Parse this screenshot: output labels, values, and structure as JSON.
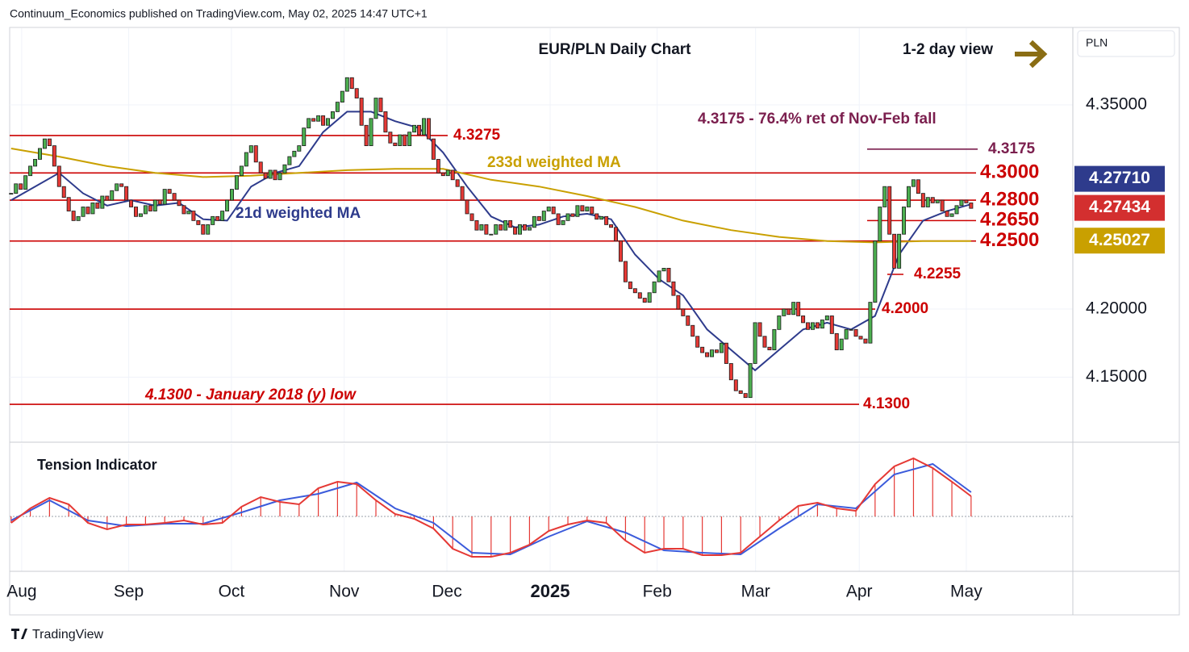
{
  "header": "Continuum_Economics published on TradingView.com, May 02, 2025 14:47 UTC+1",
  "footer": "TradingView",
  "chart_data": {
    "type": "candlestick",
    "title": "EUR/PLN Daily Chart",
    "view": "1-2 day view",
    "currency": "PLN",
    "xlim": [
      -0.3,
      221.2
    ],
    "xticks": [
      {
        "value": 2.2,
        "label": "Aug"
      },
      {
        "value": 24.5,
        "label": "Sep"
      },
      {
        "value": 45.9,
        "label": "Oct"
      },
      {
        "value": 69.4,
        "label": "Nov"
      },
      {
        "value": 90.8,
        "label": "Dec"
      },
      {
        "value": 112.3,
        "label": "2025"
      },
      {
        "value": 134.6,
        "label": "Feb"
      },
      {
        "value": 155.1,
        "label": "Mar"
      },
      {
        "value": 176.7,
        "label": "Apr"
      },
      {
        "value": 199,
        "label": "May"
      }
    ],
    "ylim": [
      4.1022,
      4.4063
    ],
    "yticks": [
      {
        "value": 4.35,
        "label": "4.35000"
      },
      {
        "value": 4.2,
        "label": "4.20000"
      },
      {
        "value": 4.15,
        "label": "4.15000"
      }
    ],
    "grid": true,
    "up_color": "#4caf50",
    "down_color": "#e53935",
    "values": [
      4.285,
      4.292,
      4.288,
      4.298,
      4.305,
      4.31,
      4.318,
      4.325,
      4.32,
      4.305,
      4.29,
      4.282,
      4.272,
      4.265,
      4.268,
      4.275,
      4.27,
      4.278,
      4.274,
      4.283,
      4.28,
      4.287,
      4.292,
      4.29,
      4.28,
      4.275,
      4.268,
      4.27,
      4.276,
      4.272,
      4.28,
      4.277,
      4.288,
      4.285,
      4.28,
      4.276,
      4.27,
      4.272,
      4.265,
      4.262,
      4.255,
      4.262,
      4.268,
      4.265,
      4.272,
      4.28,
      4.288,
      4.298,
      4.305,
      4.315,
      4.32,
      4.308,
      4.3,
      4.296,
      4.302,
      4.295,
      4.3,
      4.306,
      4.312,
      4.316,
      4.32,
      4.333,
      4.34,
      4.338,
      4.342,
      4.335,
      4.34,
      4.345,
      4.352,
      4.36,
      4.37,
      4.362,
      4.355,
      4.335,
      4.32,
      4.34,
      4.355,
      4.345,
      4.33,
      4.322,
      4.32,
      4.328,
      4.32,
      4.33,
      4.335,
      4.328,
      4.34,
      4.325,
      4.31,
      4.3,
      4.298,
      4.302,
      4.295,
      4.29,
      4.28,
      4.27,
      4.265,
      4.258,
      4.262,
      4.255,
      4.255,
      4.262,
      4.258,
      4.265,
      4.26,
      4.255,
      4.262,
      4.258,
      4.26,
      4.268,
      4.265,
      4.272,
      4.275,
      4.27,
      4.262,
      4.265,
      4.27,
      4.268,
      4.276,
      4.272,
      4.275,
      4.27,
      4.266,
      4.268,
      4.262,
      4.26,
      4.25,
      4.235,
      4.22,
      4.215,
      4.212,
      4.208,
      4.205,
      4.212,
      4.22,
      4.228,
      4.23,
      4.22,
      4.21,
      4.2,
      4.195,
      4.188,
      4.18,
      4.172,
      4.168,
      4.165,
      4.17,
      4.168,
      4.175,
      4.16,
      4.148,
      4.14,
      4.138,
      4.135,
      4.16,
      4.19,
      4.18,
      4.172,
      4.17,
      4.185,
      4.195,
      4.2,
      4.196,
      4.205,
      4.195,
      4.19,
      4.185,
      4.19,
      4.186,
      4.192,
      4.195,
      4.182,
      4.17,
      4.178,
      4.185,
      4.185,
      4.18,
      4.178,
      4.175,
      4.205,
      4.25,
      4.275,
      4.29,
      4.255,
      4.23,
      4.255,
      4.275,
      4.29,
      4.295,
      4.285,
      4.275,
      4.282,
      4.278,
      4.28,
      4.272,
      4.268,
      4.27,
      4.276,
      4.28,
      4.278,
      4.274
    ],
    "moving_averages": [
      {
        "name": "21d weighted MA",
        "color": "#2e3b8c",
        "x": [
          0,
          5,
          10,
          15,
          20,
          25,
          30,
          35,
          40,
          45,
          50,
          55,
          60,
          65,
          70,
          75,
          80,
          85,
          90,
          95,
          100,
          105,
          110,
          115,
          120,
          125,
          130,
          135,
          140,
          145,
          150,
          155,
          160,
          165,
          170,
          175,
          180,
          185,
          190,
          195,
          200
        ],
        "values": [
          4.28,
          4.29,
          4.3,
          4.285,
          4.276,
          4.28,
          4.276,
          4.278,
          4.266,
          4.265,
          4.29,
          4.3,
          4.305,
          4.33,
          4.345,
          4.345,
          4.338,
          4.333,
          4.315,
          4.29,
          4.268,
          4.26,
          4.262,
          4.268,
          4.27,
          4.266,
          4.24,
          4.222,
          4.21,
          4.185,
          4.17,
          4.155,
          4.17,
          4.185,
          4.19,
          4.185,
          4.195,
          4.24,
          4.265,
          4.272,
          4.277
        ]
      },
      {
        "name": "233d weighted MA",
        "color": "#c9a000",
        "x": [
          0,
          10,
          20,
          30,
          40,
          50,
          60,
          70,
          80,
          90,
          100,
          110,
          120,
          130,
          140,
          150,
          160,
          170,
          180,
          190,
          200
        ],
        "values": [
          4.318,
          4.312,
          4.305,
          4.3,
          4.297,
          4.298,
          4.3,
          4.302,
          4.303,
          4.303,
          4.295,
          4.29,
          4.283,
          4.275,
          4.265,
          4.258,
          4.253,
          4.25,
          4.249,
          4.25,
          4.25
        ]
      }
    ],
    "levels": [
      {
        "value": 4.3275,
        "label": "4.3275",
        "color": "#cc0000"
      },
      {
        "value": 4.3175,
        "label": "4.3175",
        "color": "#7b1f4e"
      },
      {
        "value": 4.3,
        "label": "4.3000",
        "color": "#cc0000"
      },
      {
        "value": 4.28,
        "label": "4.2800",
        "color": "#cc0000"
      },
      {
        "value": 4.265,
        "label": "4.2650",
        "color": "#cc0000"
      },
      {
        "value": 4.25,
        "label": "4.2500",
        "color": "#cc0000"
      },
      {
        "value": 4.2255,
        "label": "4.2255",
        "color": "#cc0000"
      },
      {
        "value": 4.2,
        "label": "4.2000",
        "color": "#cc0000"
      },
      {
        "value": 4.13,
        "label": "4.1300",
        "color": "#cc0000"
      }
    ],
    "annotations": [
      "4.3175 - 76.4% ret of Nov-Feb fall",
      "4.1300 - January 2018 (y) low"
    ],
    "price_tags": [
      {
        "value": 4.27434,
        "label": "4.27434",
        "color": "#d32f2f"
      },
      {
        "value": 4.2771,
        "label": "4.27710",
        "color": "#2e3b8c"
      },
      {
        "value": 4.25027,
        "label": "4.25027",
        "color": "#c9a000"
      }
    ],
    "indicator": {
      "title": "Tension Indicator",
      "ylim": [
        -68,
        90
      ],
      "color": "#e53935",
      "x": [
        0,
        4,
        8,
        12,
        16,
        20,
        24,
        28,
        32,
        36,
        40,
        44,
        48,
        52,
        56,
        60,
        64,
        68,
        72,
        76,
        80,
        84,
        88,
        92,
        96,
        100,
        104,
        108,
        112,
        116,
        120,
        124,
        128,
        132,
        136,
        140,
        144,
        148,
        152,
        156,
        160,
        164,
        168,
        172,
        176,
        180,
        184,
        188,
        192,
        196,
        200
      ],
      "values": [
        -8,
        10,
        23,
        15,
        -8,
        -16,
        -10,
        -10,
        -8,
        -5,
        -10,
        -8,
        12,
        24,
        18,
        15,
        35,
        43,
        40,
        20,
        3,
        -3,
        -15,
        -40,
        -50,
        -50,
        -45,
        -35,
        -18,
        -10,
        -5,
        -8,
        -30,
        -45,
        -40,
        -40,
        -48,
        -48,
        -45,
        -25,
        -5,
        13,
        17,
        10,
        7,
        40,
        62,
        72,
        60,
        43,
        25
      ],
      "signal": {
        "color": "#3b5bdb",
        "x": [
          0,
          8,
          16,
          24,
          32,
          40,
          48,
          56,
          64,
          72,
          80,
          88,
          96,
          104,
          112,
          120,
          128,
          136,
          144,
          152,
          160,
          168,
          176,
          184,
          192,
          200
        ],
        "values": [
          -5,
          20,
          -5,
          -12,
          -9,
          -9,
          5,
          20,
          28,
          42,
          10,
          -8,
          -45,
          -47,
          -25,
          -6,
          -20,
          -42,
          -45,
          -47,
          -15,
          15,
          10,
          52,
          65,
          30
        ]
      }
    }
  }
}
